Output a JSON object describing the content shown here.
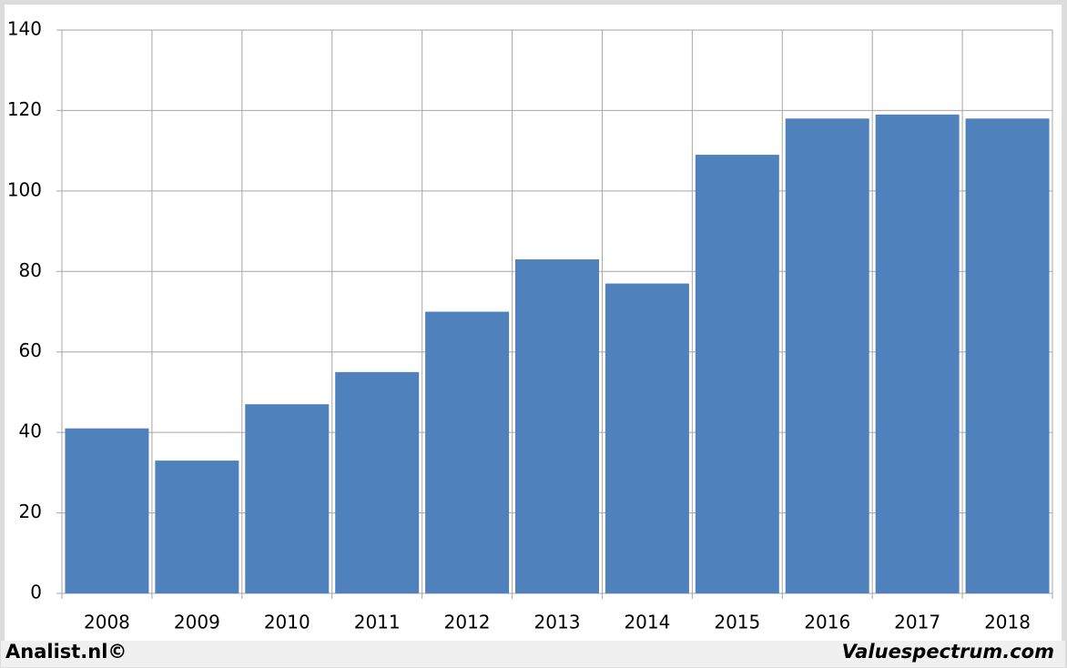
{
  "chart_data": {
    "type": "bar",
    "categories": [
      "2008",
      "2009",
      "2010",
      "2011",
      "2012",
      "2013",
      "2014",
      "2015",
      "2016",
      "2017",
      "2018"
    ],
    "values": [
      41,
      33,
      47,
      55,
      70,
      83,
      77,
      109,
      118,
      119,
      118
    ],
    "color": "#4f81bd",
    "ylim": [
      0,
      140
    ],
    "yticks": [
      0,
      20,
      40,
      60,
      80,
      100,
      120,
      140
    ],
    "grid": true
  },
  "footer": {
    "left": "Analist.nl©",
    "right": "Valuespectrum.com"
  }
}
